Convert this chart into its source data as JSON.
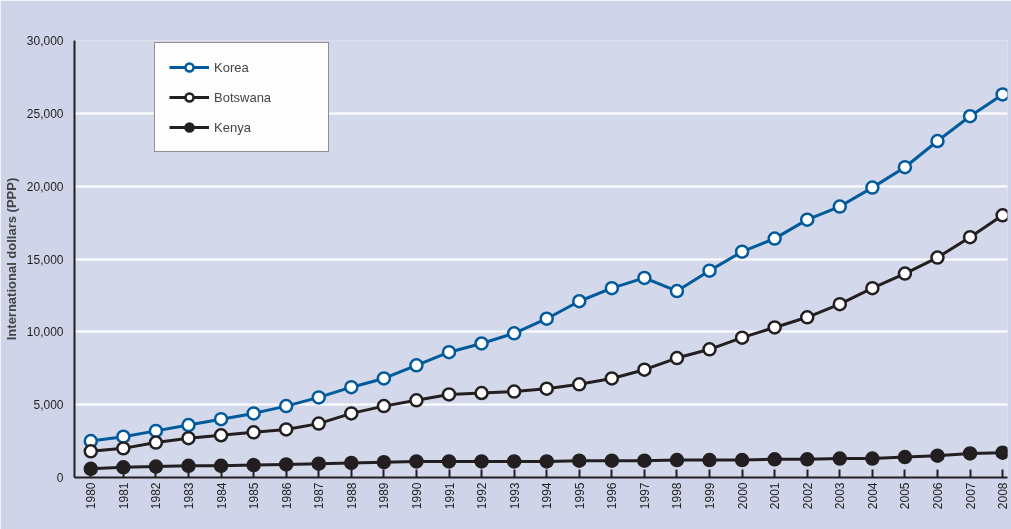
{
  "chart_data": {
    "type": "line",
    "ylabel": "International dollars (PPP)",
    "categories": [
      "1980",
      "1981",
      "1982",
      "1983",
      "1984",
      "1985",
      "1986",
      "1987",
      "1988",
      "1989",
      "1990",
      "1991",
      "1992",
      "1993",
      "1994",
      "1995",
      "1996",
      "1997",
      "1998",
      "1999",
      "2000",
      "2001",
      "2002",
      "2003",
      "2004",
      "2005",
      "2006",
      "2007",
      "2008"
    ],
    "series": [
      {
        "name": "Korea",
        "color": "#005a9c",
        "values": [
          2500,
          2800,
          3200,
          3600,
          4000,
          4400,
          4900,
          5500,
          6200,
          6800,
          7700,
          8600,
          9200,
          9900,
          10900,
          12100,
          13000,
          13700,
          12800,
          14200,
          15500,
          16400,
          17700,
          18600,
          19900,
          21300,
          23100,
          24800,
          26300
        ]
      },
      {
        "name": "Botswana",
        "color": "#231f20",
        "values": [
          1800,
          2000,
          2400,
          2700,
          2900,
          3100,
          3300,
          3700,
          4400,
          4900,
          5300,
          5700,
          5800,
          5900,
          6100,
          6400,
          6800,
          7400,
          8200,
          8800,
          9600,
          10300,
          11000,
          11900,
          13000,
          14000,
          15100,
          16500,
          18000
        ]
      },
      {
        "name": "Kenya",
        "color": "#231f20",
        "values": [
          600,
          700,
          750,
          800,
          800,
          850,
          900,
          950,
          1000,
          1050,
          1100,
          1100,
          1100,
          1100,
          1100,
          1150,
          1150,
          1150,
          1200,
          1200,
          1200,
          1250,
          1250,
          1300,
          1300,
          1400,
          1500,
          1650,
          1700
        ]
      }
    ],
    "ylim": [
      0,
      30000
    ],
    "yticks": [
      {
        "value": 0,
        "label": "0"
      },
      {
        "value": 5000,
        "label": "5,000"
      },
      {
        "value": 10000,
        "label": "10,000"
      },
      {
        "value": 15000,
        "label": "15,000"
      },
      {
        "value": 20000,
        "label": "20,000"
      },
      {
        "value": 25000,
        "label": "25,000"
      },
      {
        "value": 30000,
        "label": "30,000"
      }
    ],
    "grid": "y",
    "legend": "top left",
    "marker": "circle"
  }
}
